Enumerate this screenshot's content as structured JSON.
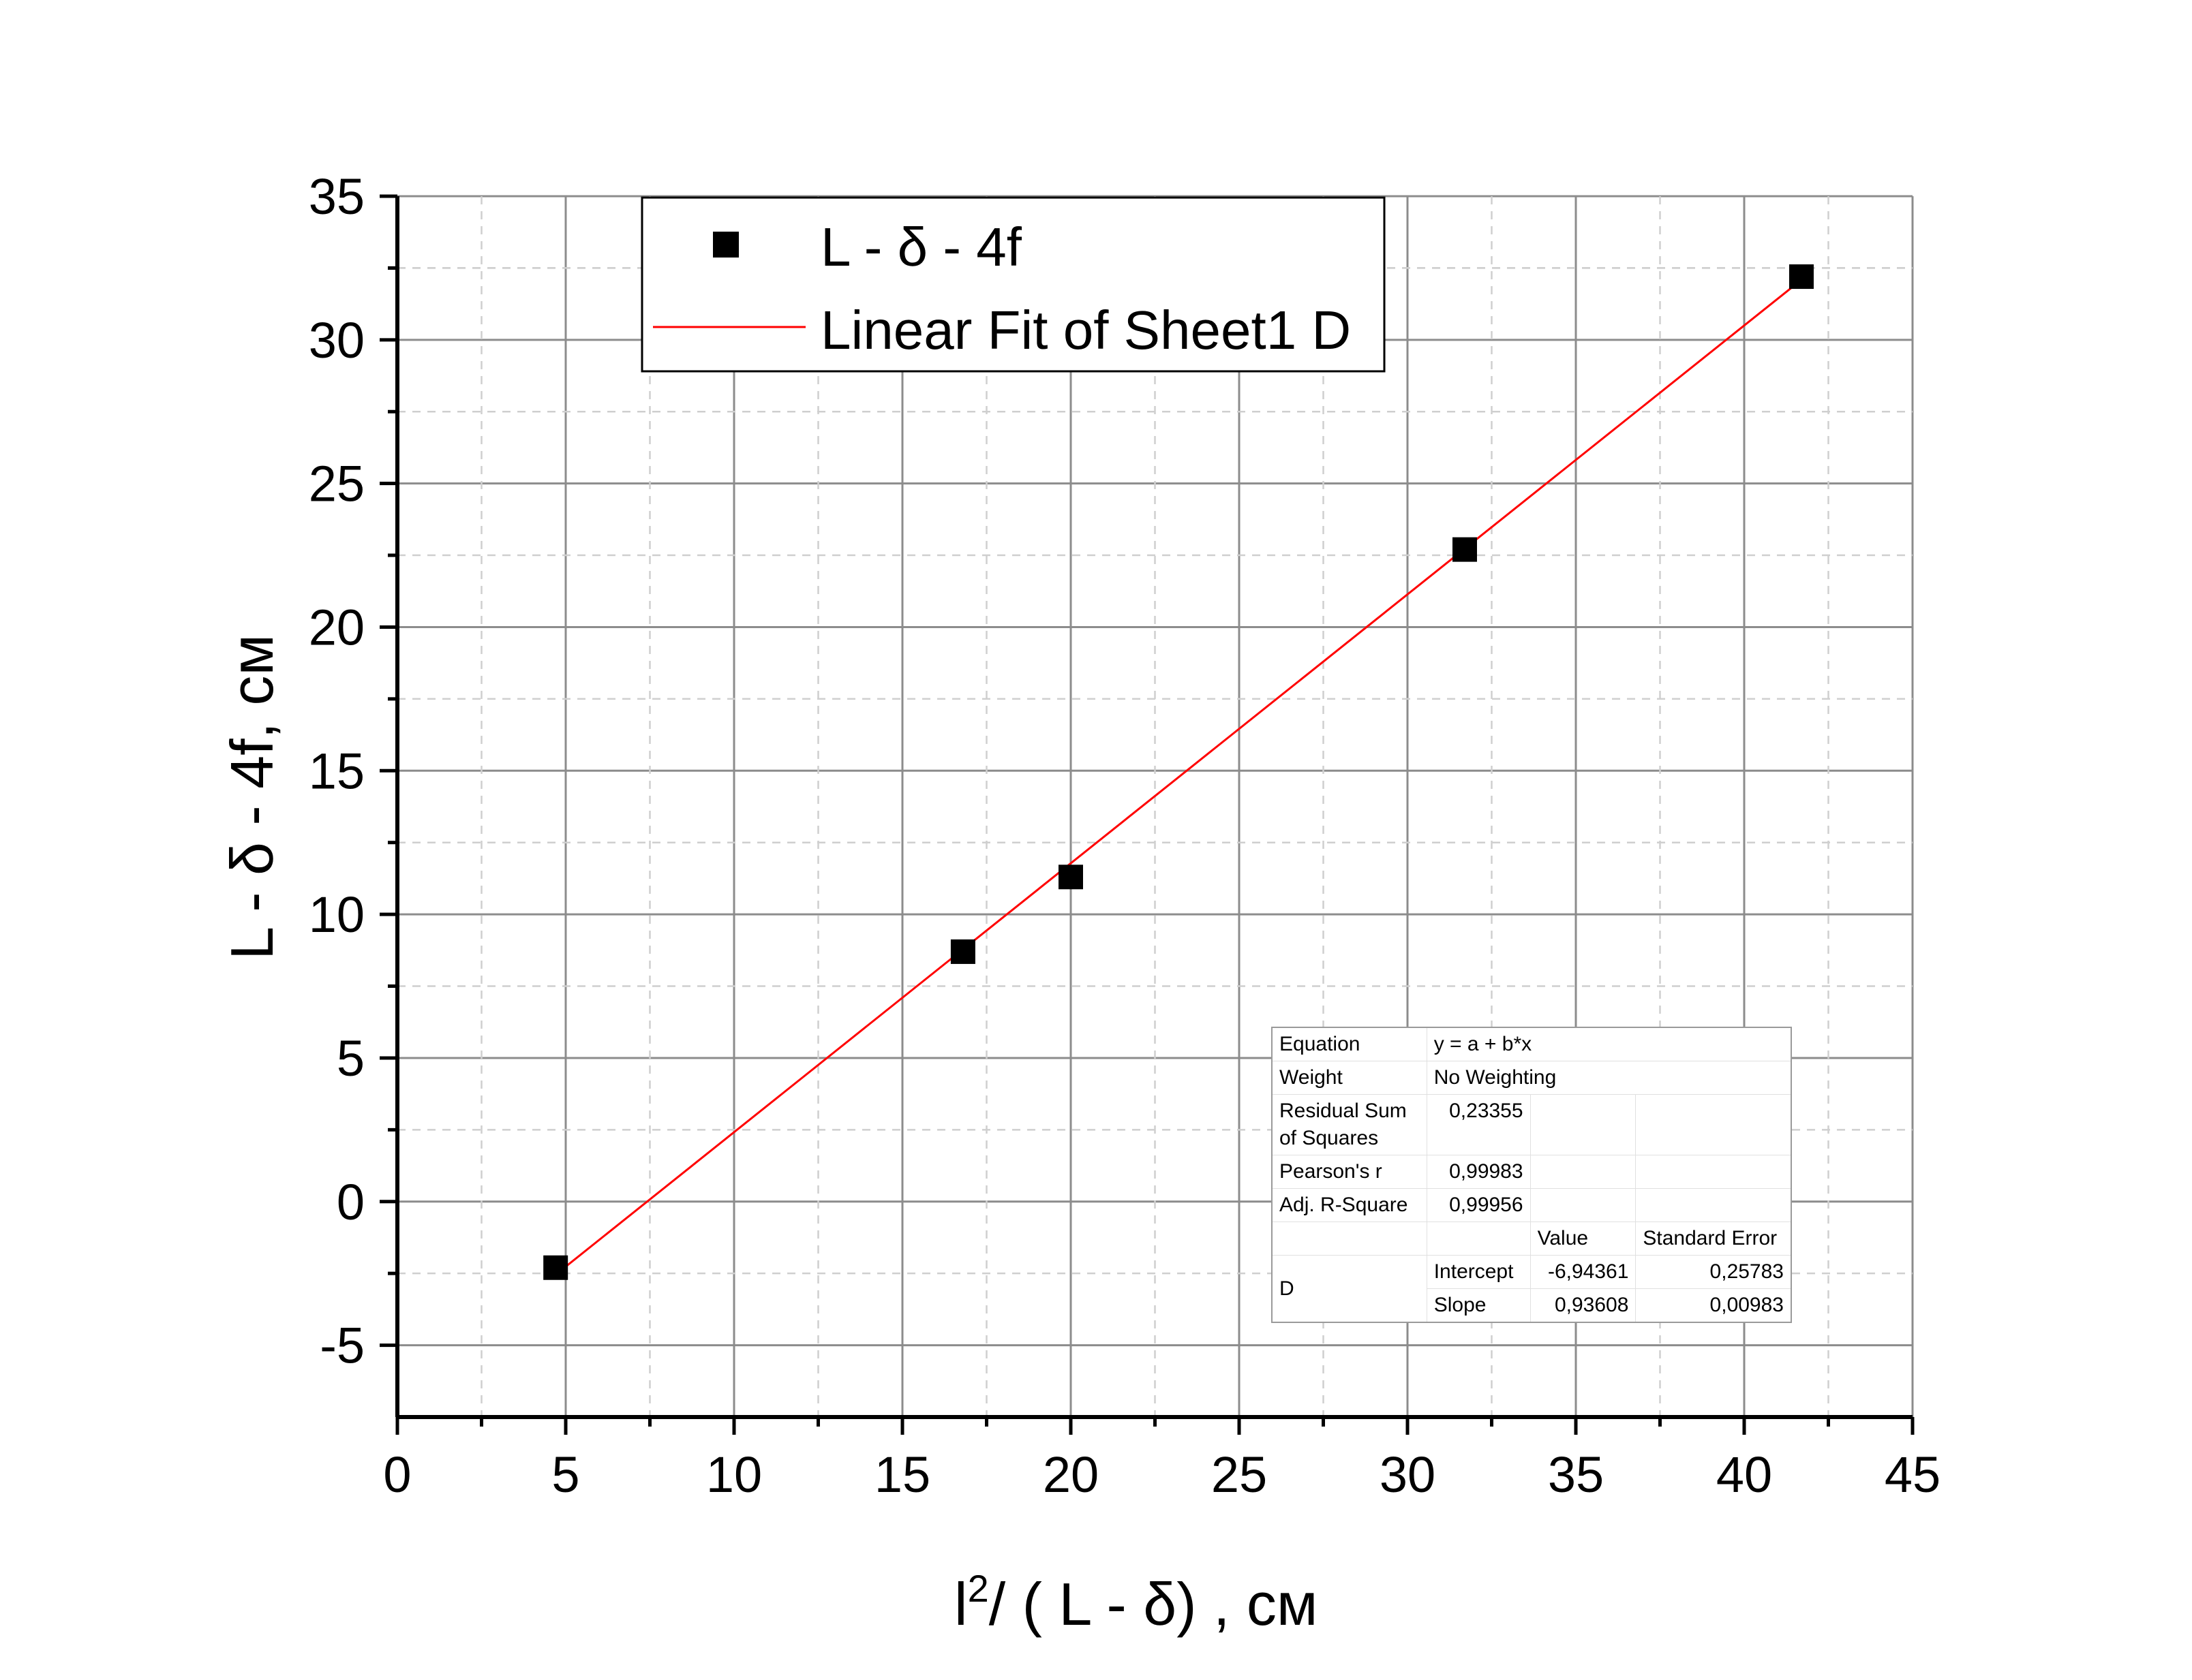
{
  "chart_data": {
    "type": "scatter",
    "xlabel_main": "l",
    "xlabel_sup": "2",
    "xlabel_rest": "/  ( L - δ)   , см",
    "ylabel": "L - δ - 4f, см",
    "xlim": [
      0,
      45
    ],
    "ylim": [
      -7.5,
      35
    ],
    "x_ticks": [
      "0",
      "5",
      "10",
      "15",
      "20",
      "25",
      "30",
      "35",
      "40",
      "45"
    ],
    "y_ticks": [
      "-5",
      "0",
      "5",
      "10",
      "15",
      "20",
      "25",
      "30",
      "35"
    ],
    "grid": true,
    "legend_position": "top",
    "series": [
      {
        "name": "L - δ - 4f",
        "marker": "square",
        "color": "#000000",
        "x": [
          4.7,
          16.8,
          20.0,
          31.7,
          41.7
        ],
        "y": [
          -2.3,
          8.7,
          11.3,
          22.7,
          32.2
        ]
      },
      {
        "name": "Linear Fit of Sheet1 D",
        "style": "line",
        "color": "#ff0000",
        "intercept": -6.94361,
        "slope": 0.93608,
        "x_range": [
          4.7,
          41.7
        ]
      }
    ],
    "fit_table": {
      "equation_label": "Equation",
      "equation": "y = a + b*x",
      "weight_label": "Weight",
      "weight": "No Weighting",
      "rss_label_1": "Residual Sum",
      "rss_label_2": "of Squares",
      "rss": "0,23355",
      "pearson_label": "Pearson's r",
      "pearson": "0,99983",
      "adjr_label": "Adj. R-Square",
      "adjr": "0,99956",
      "value_header": "Value",
      "stderr_header": "Standard Error",
      "dataset": "D",
      "intercept_label": "Intercept",
      "intercept_value": "-6,94361",
      "intercept_error": "0,25783",
      "slope_label": "Slope",
      "slope_value": "0,93608",
      "slope_error": "0,00983"
    }
  }
}
